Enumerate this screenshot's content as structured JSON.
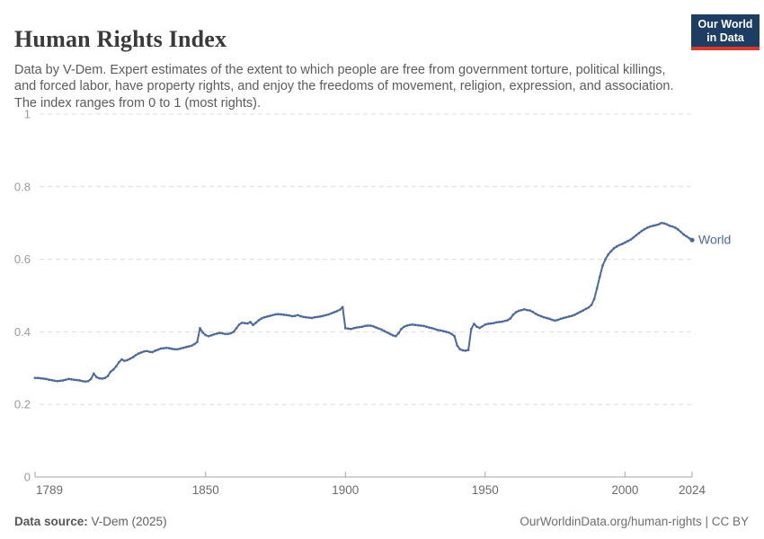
{
  "header": {
    "title": "Human Rights Index",
    "subtitle": "Data by V-Dem. Expert estimates of the extent to which people are free from government torture, political killings, and forced labor, have property rights, and enjoy the freedoms of movement, religion, expression, and association. The index ranges from 0 to 1 (most rights).",
    "logo": {
      "line1": "Our World",
      "line2": "in Data",
      "bg_color": "#1d3d63",
      "accent_color": "#d93a2b",
      "text_color": "#ffffff"
    }
  },
  "footer": {
    "source_label": "Data source:",
    "source_value": " V-Dem (2025)",
    "credit": "OurWorldinData.org/human-rights | CC BY"
  },
  "colors": {
    "series_blue": "#4c6a9c",
    "gridline": "#dcdcdc",
    "axis_line": "#a5a5a5",
    "y_tick_label": "#9a9a9a",
    "x_tick_label": "#6b6b6b"
  },
  "chart_data": {
    "type": "line",
    "title": "Human Rights Index",
    "xlabel": "",
    "ylabel": "",
    "xlim": [
      1789,
      2024
    ],
    "ylim": [
      0,
      1
    ],
    "x_ticks": [
      1789,
      1850,
      1900,
      1950,
      2000,
      2024
    ],
    "y_ticks": [
      0,
      0.2,
      0.4,
      0.6,
      0.8,
      1
    ],
    "grid": "horizontal-dashed",
    "legend_position": "end-of-line",
    "end_label": "World",
    "series": [
      {
        "name": "World",
        "color": "#4c6a9c",
        "points": [
          [
            1789,
            0.273
          ],
          [
            1790,
            0.273
          ],
          [
            1791,
            0.272
          ],
          [
            1792,
            0.271
          ],
          [
            1793,
            0.27
          ],
          [
            1794,
            0.268
          ],
          [
            1795,
            0.267
          ],
          [
            1796,
            0.265
          ],
          [
            1797,
            0.264
          ],
          [
            1798,
            0.265
          ],
          [
            1799,
            0.266
          ],
          [
            1800,
            0.268
          ],
          [
            1801,
            0.27
          ],
          [
            1802,
            0.269
          ],
          [
            1803,
            0.268
          ],
          [
            1804,
            0.267
          ],
          [
            1805,
            0.266
          ],
          [
            1806,
            0.264
          ],
          [
            1807,
            0.263
          ],
          [
            1808,
            0.264
          ],
          [
            1809,
            0.27
          ],
          [
            1810,
            0.285
          ],
          [
            1811,
            0.275
          ],
          [
            1812,
            0.272
          ],
          [
            1813,
            0.271
          ],
          [
            1814,
            0.273
          ],
          [
            1815,
            0.278
          ],
          [
            1816,
            0.29
          ],
          [
            1817,
            0.296
          ],
          [
            1818,
            0.305
          ],
          [
            1819,
            0.316
          ],
          [
            1820,
            0.324
          ],
          [
            1821,
            0.32
          ],
          [
            1822,
            0.322
          ],
          [
            1823,
            0.326
          ],
          [
            1824,
            0.33
          ],
          [
            1825,
            0.336
          ],
          [
            1826,
            0.34
          ],
          [
            1827,
            0.343
          ],
          [
            1828,
            0.346
          ],
          [
            1829,
            0.347
          ],
          [
            1830,
            0.345
          ],
          [
            1831,
            0.344
          ],
          [
            1832,
            0.348
          ],
          [
            1833,
            0.351
          ],
          [
            1834,
            0.354
          ],
          [
            1835,
            0.355
          ],
          [
            1836,
            0.356
          ],
          [
            1837,
            0.355
          ],
          [
            1838,
            0.353
          ],
          [
            1839,
            0.352
          ],
          [
            1840,
            0.352
          ],
          [
            1841,
            0.354
          ],
          [
            1842,
            0.356
          ],
          [
            1843,
            0.358
          ],
          [
            1844,
            0.36
          ],
          [
            1845,
            0.362
          ],
          [
            1846,
            0.366
          ],
          [
            1847,
            0.372
          ],
          [
            1848,
            0.41
          ],
          [
            1849,
            0.398
          ],
          [
            1850,
            0.391
          ],
          [
            1851,
            0.388
          ],
          [
            1852,
            0.39
          ],
          [
            1853,
            0.393
          ],
          [
            1854,
            0.395
          ],
          [
            1855,
            0.397
          ],
          [
            1856,
            0.396
          ],
          [
            1857,
            0.394
          ],
          [
            1858,
            0.394
          ],
          [
            1859,
            0.396
          ],
          [
            1860,
            0.4
          ],
          [
            1861,
            0.41
          ],
          [
            1862,
            0.42
          ],
          [
            1863,
            0.425
          ],
          [
            1864,
            0.424
          ],
          [
            1865,
            0.423
          ],
          [
            1866,
            0.427
          ],
          [
            1867,
            0.419
          ],
          [
            1868,
            0.425
          ],
          [
            1869,
            0.432
          ],
          [
            1870,
            0.437
          ],
          [
            1871,
            0.44
          ],
          [
            1872,
            0.442
          ],
          [
            1873,
            0.444
          ],
          [
            1874,
            0.446
          ],
          [
            1875,
            0.448
          ],
          [
            1876,
            0.449
          ],
          [
            1877,
            0.448
          ],
          [
            1878,
            0.447
          ],
          [
            1879,
            0.446
          ],
          [
            1880,
            0.445
          ],
          [
            1881,
            0.443
          ],
          [
            1882,
            0.444
          ],
          [
            1883,
            0.446
          ],
          [
            1884,
            0.443
          ],
          [
            1885,
            0.441
          ],
          [
            1886,
            0.44
          ],
          [
            1887,
            0.439
          ],
          [
            1888,
            0.438
          ],
          [
            1889,
            0.44
          ],
          [
            1890,
            0.441
          ],
          [
            1891,
            0.442
          ],
          [
            1892,
            0.444
          ],
          [
            1893,
            0.446
          ],
          [
            1894,
            0.448
          ],
          [
            1895,
            0.451
          ],
          [
            1896,
            0.454
          ],
          [
            1897,
            0.457
          ],
          [
            1898,
            0.461
          ],
          [
            1899,
            0.468
          ],
          [
            1900,
            0.41
          ],
          [
            1901,
            0.409
          ],
          [
            1902,
            0.408
          ],
          [
            1903,
            0.41
          ],
          [
            1904,
            0.412
          ],
          [
            1905,
            0.413
          ],
          [
            1906,
            0.414
          ],
          [
            1907,
            0.416
          ],
          [
            1908,
            0.417
          ],
          [
            1909,
            0.417
          ],
          [
            1910,
            0.415
          ],
          [
            1911,
            0.412
          ],
          [
            1912,
            0.409
          ],
          [
            1913,
            0.406
          ],
          [
            1914,
            0.402
          ],
          [
            1915,
            0.398
          ],
          [
            1916,
            0.394
          ],
          [
            1917,
            0.39
          ],
          [
            1918,
            0.388
          ],
          [
            1919,
            0.396
          ],
          [
            1920,
            0.408
          ],
          [
            1921,
            0.414
          ],
          [
            1922,
            0.417
          ],
          [
            1923,
            0.419
          ],
          [
            1924,
            0.42
          ],
          [
            1925,
            0.419
          ],
          [
            1926,
            0.418
          ],
          [
            1927,
            0.417
          ],
          [
            1928,
            0.416
          ],
          [
            1929,
            0.414
          ],
          [
            1930,
            0.412
          ],
          [
            1931,
            0.41
          ],
          [
            1932,
            0.408
          ],
          [
            1933,
            0.405
          ],
          [
            1934,
            0.404
          ],
          [
            1935,
            0.402
          ],
          [
            1936,
            0.4
          ],
          [
            1937,
            0.398
          ],
          [
            1938,
            0.394
          ],
          [
            1939,
            0.388
          ],
          [
            1940,
            0.362
          ],
          [
            1941,
            0.352
          ],
          [
            1942,
            0.349
          ],
          [
            1943,
            0.348
          ],
          [
            1944,
            0.35
          ],
          [
            1945,
            0.408
          ],
          [
            1946,
            0.422
          ],
          [
            1947,
            0.414
          ],
          [
            1948,
            0.411
          ],
          [
            1949,
            0.415
          ],
          [
            1950,
            0.42
          ],
          [
            1951,
            0.422
          ],
          [
            1952,
            0.423
          ],
          [
            1953,
            0.424
          ],
          [
            1954,
            0.426
          ],
          [
            1955,
            0.427
          ],
          [
            1956,
            0.428
          ],
          [
            1957,
            0.43
          ],
          [
            1958,
            0.432
          ],
          [
            1959,
            0.437
          ],
          [
            1960,
            0.447
          ],
          [
            1961,
            0.454
          ],
          [
            1962,
            0.458
          ],
          [
            1963,
            0.46
          ],
          [
            1964,
            0.462
          ],
          [
            1965,
            0.46
          ],
          [
            1966,
            0.459
          ],
          [
            1967,
            0.455
          ],
          [
            1968,
            0.45
          ],
          [
            1969,
            0.446
          ],
          [
            1970,
            0.443
          ],
          [
            1971,
            0.44
          ],
          [
            1972,
            0.438
          ],
          [
            1973,
            0.436
          ],
          [
            1974,
            0.433
          ],
          [
            1975,
            0.431
          ],
          [
            1976,
            0.433
          ],
          [
            1977,
            0.436
          ],
          [
            1978,
            0.438
          ],
          [
            1979,
            0.44
          ],
          [
            1980,
            0.442
          ],
          [
            1981,
            0.444
          ],
          [
            1982,
            0.447
          ],
          [
            1983,
            0.451
          ],
          [
            1984,
            0.455
          ],
          [
            1985,
            0.459
          ],
          [
            1986,
            0.463
          ],
          [
            1987,
            0.467
          ],
          [
            1988,
            0.474
          ],
          [
            1989,
            0.49
          ],
          [
            1990,
            0.52
          ],
          [
            1991,
            0.552
          ],
          [
            1992,
            0.583
          ],
          [
            1993,
            0.6
          ],
          [
            1994,
            0.613
          ],
          [
            1995,
            0.622
          ],
          [
            1996,
            0.63
          ],
          [
            1997,
            0.635
          ],
          [
            1998,
            0.639
          ],
          [
            1999,
            0.642
          ],
          [
            2000,
            0.646
          ],
          [
            2001,
            0.65
          ],
          [
            2002,
            0.654
          ],
          [
            2003,
            0.66
          ],
          [
            2004,
            0.666
          ],
          [
            2005,
            0.672
          ],
          [
            2006,
            0.678
          ],
          [
            2007,
            0.683
          ],
          [
            2008,
            0.687
          ],
          [
            2009,
            0.69
          ],
          [
            2010,
            0.692
          ],
          [
            2011,
            0.694
          ],
          [
            2012,
            0.696
          ],
          [
            2013,
            0.7
          ],
          [
            2014,
            0.699
          ],
          [
            2015,
            0.696
          ],
          [
            2016,
            0.692
          ],
          [
            2017,
            0.69
          ],
          [
            2018,
            0.687
          ],
          [
            2019,
            0.682
          ],
          [
            2020,
            0.675
          ],
          [
            2021,
            0.668
          ],
          [
            2022,
            0.663
          ],
          [
            2023,
            0.658
          ],
          [
            2024,
            0.653
          ]
        ]
      }
    ]
  }
}
